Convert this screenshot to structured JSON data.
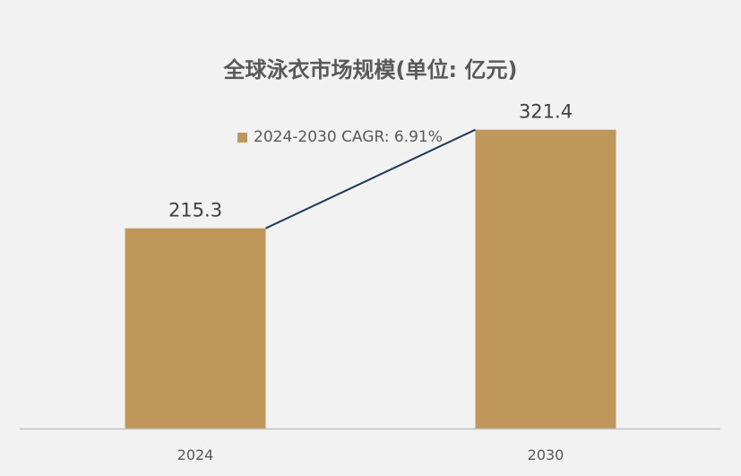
{
  "chart_data": {
    "type": "bar",
    "title": "全球泳衣市场规模(单位: 亿元)",
    "categories": [
      "2024",
      "2030"
    ],
    "values": [
      215.3,
      321.4
    ],
    "legend": "2024-2030 CAGR: 6.91%",
    "legend_position": "top",
    "ylim": [
      0,
      350
    ],
    "grid": false,
    "bar_color": "#c0975a",
    "line_color": "#1f3b57",
    "connector_line": true
  }
}
